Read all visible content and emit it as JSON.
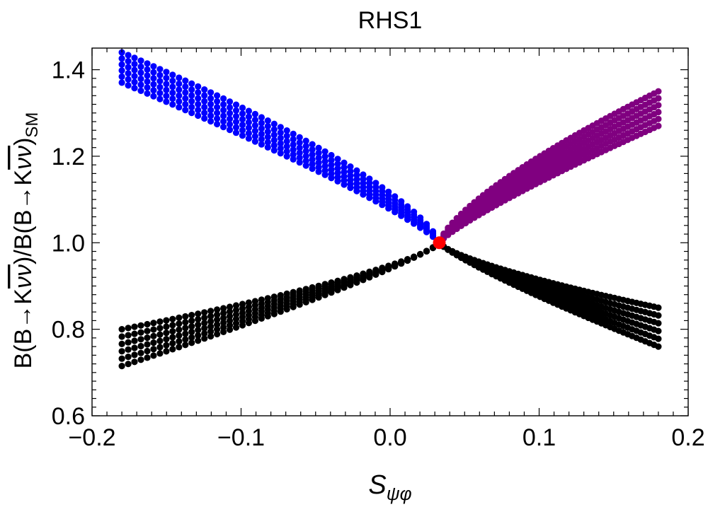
{
  "chart_data": {
    "type": "scatter",
    "title": "RHS1",
    "xlabel": {
      "main": "S",
      "sub": "ψφ"
    },
    "ylabel": {
      "numerator": "B(B→K",
      "over": "νν",
      "mid": ")/B(B→K",
      "over2": "νν",
      "close": ")",
      "sub": "SM"
    },
    "xlim": [
      -0.2,
      0.2
    ],
    "ylim": [
      0.6,
      1.45
    ],
    "xticks": [
      -0.2,
      -0.1,
      0.0,
      0.1,
      0.2
    ],
    "xtick_labels": [
      "−0.2",
      "−0.1",
      "0.0",
      "0.1",
      "0.2"
    ],
    "yticks": [
      0.6,
      0.8,
      1.0,
      1.2,
      1.4
    ],
    "ytick_labels": [
      "0.6",
      "0.8",
      "1.0",
      "1.2",
      "1.4"
    ],
    "grid": false,
    "sm_point": {
      "x": 0.033,
      "y": 1.0,
      "color": "#ff0000"
    },
    "series": [
      {
        "color": "#0000ff",
        "branch": "upper-left",
        "x_end": -0.18,
        "y_top_end": 1.44,
        "y_bottom_end": 1.37
      },
      {
        "color": "#800080",
        "branch": "upper-right",
        "x_end": 0.18,
        "y_top_end": 1.35,
        "y_bottom_end": 1.27
      },
      {
        "color": "#000000",
        "branch": "lower-left",
        "x_end": -0.18,
        "y_top_end": 0.8,
        "y_bottom_end": 0.715
      },
      {
        "color": "#000000",
        "branch": "lower-right",
        "x_end": 0.18,
        "y_top_end": 0.85,
        "y_bottom_end": 0.76
      }
    ]
  }
}
